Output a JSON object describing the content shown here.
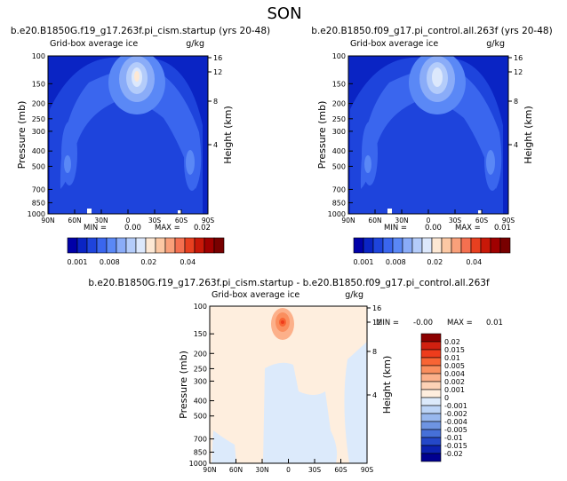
{
  "figure": {
    "title": "SON"
  },
  "chart_data": [
    {
      "type": "heatmap",
      "panel": "top-left",
      "case_title": "b.e20.B1850G.f19_g17.263f.pi_cism.startup (yrs 20-48)",
      "field_label": "Grid-box average ice",
      "units": "g/kg",
      "ylabel": "Pressure (mb)",
      "ylabel_right": "Height (km)",
      "x_ticks": [
        "90N",
        "60N",
        "30N",
        "0",
        "30S",
        "60S",
        "90S"
      ],
      "y_ticks": [
        "100",
        "150",
        "200",
        "250",
        "300",
        "400",
        "500",
        "700",
        "850",
        "1000"
      ],
      "y_ticks_right": [
        "16",
        "12",
        "8",
        "4"
      ],
      "min_label": "MIN =",
      "min_value": "0.00",
      "max_label": "MAX =",
      "max_value": "0.02",
      "colorbar_ticks": [
        "0.001",
        "0.008",
        "0.02",
        "0.04"
      ],
      "colorbar_colors": [
        "#0000a8",
        "#0a24c4",
        "#1e44dc",
        "#3a66ee",
        "#5a88f6",
        "#8aacf8",
        "#b4ccfa",
        "#dce8fc",
        "#fde8d4",
        "#fcc8a4",
        "#f9a07a",
        "#f47050",
        "#e84020",
        "#c81808",
        "#a00000",
        "#780000"
      ]
    },
    {
      "type": "heatmap",
      "panel": "top-right",
      "case_title": "b.e20.B1850.f09_g17.pi_control.all.263f (yrs 20-48)",
      "field_label": "Grid-box average ice",
      "units": "g/kg",
      "ylabel": "Pressure (mb)",
      "ylabel_right": "Height (km)",
      "x_ticks": [
        "90N",
        "60N",
        "30N",
        "0",
        "30S",
        "60S",
        "90S"
      ],
      "y_ticks": [
        "100",
        "150",
        "200",
        "250",
        "300",
        "400",
        "500",
        "700",
        "850",
        "1000"
      ],
      "y_ticks_right": [
        "16",
        "12",
        "8",
        "4"
      ],
      "min_label": "MIN =",
      "min_value": "0.00",
      "max_label": "MAX =",
      "max_value": "0.01",
      "colorbar_ticks": [
        "0.001",
        "0.008",
        "0.02",
        "0.04"
      ],
      "colorbar_colors": [
        "#0000a8",
        "#0a24c4",
        "#1e44dc",
        "#3a66ee",
        "#5a88f6",
        "#8aacf8",
        "#b4ccfa",
        "#dce8fc",
        "#fde8d4",
        "#fcc8a4",
        "#f9a07a",
        "#f47050",
        "#e84020",
        "#c81808",
        "#a00000",
        "#780000"
      ]
    },
    {
      "type": "heatmap",
      "panel": "bottom-difference",
      "case_title": "b.e20.B1850G.f19_g17.263f.pi_cism.startup - b.e20.B1850.f09_g17.pi_control.all.263f",
      "field_label": "Grid-box average ice",
      "units": "g/kg",
      "ylabel": "Pressure (mb)",
      "ylabel_right": "Height (km)",
      "x_ticks": [
        "90N",
        "60N",
        "30N",
        "0",
        "30S",
        "60S",
        "90S"
      ],
      "y_ticks": [
        "100",
        "150",
        "200",
        "250",
        "300",
        "400",
        "500",
        "700",
        "850",
        "1000"
      ],
      "y_ticks_right": [
        "16",
        "12",
        "8",
        "4"
      ],
      "min_label": "MIN =",
      "min_value": "-0.00",
      "max_label": "MAX =",
      "max_value": "0.01",
      "legend_labels": [
        "0.02",
        "0.015",
        "0.01",
        "0.005",
        "0.004",
        "0.002",
        "0.001",
        "0",
        "-0.001",
        "-0.002",
        "-0.004",
        "-0.005",
        "-0.01",
        "-0.015",
        "-0.02"
      ],
      "legend_colors": [
        "#8c0000",
        "#d02010",
        "#ee3c1c",
        "#f86434",
        "#fa8e5e",
        "#fcb08a",
        "#fdd2b6",
        "#feeede",
        "#dceafb",
        "#bcd4f6",
        "#98b8ee",
        "#6e94e2",
        "#4670d8",
        "#2448c8",
        "#0c22b0",
        "#000090"
      ]
    }
  ]
}
